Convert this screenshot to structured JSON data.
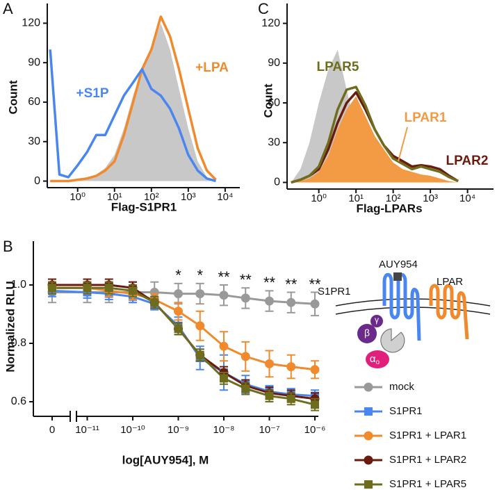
{
  "chart_data": [
    {
      "panel": "A",
      "type": "area",
      "xscale": "log",
      "xlabel": "Flag-S1PR1",
      "ylabel": "Count",
      "x": [
        0.18,
        0.32,
        0.56,
        1,
        1.8,
        3.2,
        5.6,
        10,
        18,
        32,
        56,
        100,
        180,
        320,
        560,
        1000,
        1800,
        3200,
        5600
      ],
      "xlim": [
        0.15,
        25000
      ],
      "xticks": [
        {
          "value": 1,
          "label": "10⁰"
        },
        {
          "value": 10,
          "label": "10¹"
        },
        {
          "value": 100,
          "label": "10²"
        },
        {
          "value": 1000,
          "label": "10³"
        },
        {
          "value": 10000,
          "label": "10⁴"
        }
      ],
      "ylim": [
        -5,
        135
      ],
      "yticks": [
        0,
        30,
        60,
        90,
        120
      ],
      "series": [
        {
          "color": "#c8c8c8",
          "filled": true,
          "values": [
            0,
            0,
            0,
            1,
            3,
            5,
            10,
            20,
            40,
            65,
            85,
            100,
            120,
            100,
            70,
            40,
            15,
            3,
            0
          ]
        },
        {
          "name": "+LPA",
          "color": "#f08a2c",
          "filled": false,
          "values": [
            0,
            0,
            0,
            1,
            2,
            4,
            8,
            15,
            35,
            60,
            85,
            100,
            125,
            110,
            85,
            55,
            25,
            8,
            1
          ]
        },
        {
          "name": "+S1P",
          "color": "#4a86f0",
          "filled": false,
          "values": [
            100,
            5,
            3,
            12,
            22,
            35,
            35,
            50,
            65,
            75,
            85,
            70,
            65,
            55,
            40,
            20,
            8,
            2,
            0
          ]
        }
      ]
    },
    {
      "panel": "B",
      "type": "line",
      "xscale": "log",
      "x_break": true,
      "xlabel": "log[AUY954], M",
      "ylabel": "Normalized RLU",
      "x": [
        0,
        1e-11,
        3e-11,
        1e-10,
        3e-10,
        1e-09,
        3e-09,
        1e-08,
        3e-08,
        1e-07,
        3e-07,
        1e-06
      ],
      "xlim": [
        0,
        1e-06
      ],
      "xticks": [
        0,
        {
          "value": 1e-11,
          "label": "10⁻¹¹"
        },
        {
          "value": 1e-10,
          "label": "10⁻¹⁰"
        },
        {
          "value": 1e-09,
          "label": "10⁻⁹"
        },
        {
          "value": 1e-08,
          "label": "10⁻⁸"
        },
        {
          "value": 1e-07,
          "label": "10⁻⁷"
        },
        {
          "value": 1e-06,
          "label": "10⁻⁶"
        }
      ],
      "ylim": [
        0.55,
        1.15
      ],
      "yticks": [
        0.6,
        0.8,
        {
          "value": 1,
          "label": "1.0"
        }
      ],
      "series": [
        {
          "name": "mock",
          "color": "#999999",
          "marker": "circle",
          "values": [
            0.975,
            0.975,
            0.975,
            0.975,
            0.975,
            0.97,
            0.97,
            0.965,
            0.955,
            0.945,
            0.94,
            0.935
          ],
          "errors": [
            0.035,
            0.035,
            0.035,
            0.035,
            0.035,
            0.035,
            0.035,
            0.035,
            0.035,
            0.035,
            0.035,
            0.04
          ]
        },
        {
          "name": "S1PR1",
          "color": "#4a86f0",
          "marker": "square",
          "values": [
            0.98,
            0.975,
            0.97,
            0.96,
            0.935,
            0.86,
            0.75,
            0.7,
            0.66,
            0.635,
            0.625,
            0.62
          ],
          "errors": [
            0.02,
            0.02,
            0.02,
            0.02,
            0.02,
            0.03,
            0.04,
            0.06,
            0.03,
            0.02,
            0.02,
            0.02
          ]
        },
        {
          "name": "S1PR1 + LPAR1",
          "color": "#f08a2c",
          "marker": "circle",
          "values": [
            0.99,
            0.99,
            0.98,
            0.97,
            0.95,
            0.91,
            0.86,
            0.79,
            0.755,
            0.73,
            0.72,
            0.71
          ],
          "errors": [
            0.02,
            0.02,
            0.02,
            0.02,
            0.02,
            0.03,
            0.05,
            0.05,
            0.05,
            0.045,
            0.04,
            0.03
          ]
        },
        {
          "name": "S1PR1 + LPAR2",
          "color": "#6b1a0e",
          "marker": "circle",
          "values": [
            1,
            1,
            1,
            0.99,
            0.94,
            0.85,
            0.76,
            0.7,
            0.655,
            0.63,
            0.62,
            0.61
          ],
          "errors": [
            0.02,
            0.02,
            0.02,
            0.02,
            0.02,
            0.02,
            0.02,
            0.02,
            0.02,
            0.02,
            0.02,
            0.02
          ]
        },
        {
          "name": "S1PR1 + LPAR5",
          "color": "#6e6d1e",
          "marker": "square",
          "values": [
            0.99,
            0.99,
            0.99,
            0.98,
            0.94,
            0.85,
            0.76,
            0.68,
            0.645,
            0.62,
            0.61,
            0.59
          ],
          "errors": [
            0.02,
            0.02,
            0.02,
            0.02,
            0.02,
            0.02,
            0.02,
            0.02,
            0.02,
            0.02,
            0.02,
            0.02
          ]
        }
      ],
      "significance": [
        null,
        null,
        null,
        null,
        null,
        "*",
        "*",
        "**",
        "**",
        "**",
        "**",
        "**"
      ]
    },
    {
      "panel": "C",
      "type": "area",
      "xscale": "log",
      "xlabel": "Flag-LPARs",
      "ylabel": "Count",
      "x": [
        0.18,
        0.32,
        0.56,
        1,
        1.8,
        3.2,
        5.6,
        10,
        18,
        32,
        56,
        100,
        180,
        320,
        560,
        1000,
        1800,
        3200,
        5600
      ],
      "xlim": [
        0.14,
        50000
      ],
      "xticks": [
        {
          "value": 1,
          "label": "10⁰"
        },
        {
          "value": 10,
          "label": "10¹"
        },
        {
          "value": 100,
          "label": "10²"
        },
        {
          "value": 1000,
          "label": "10³"
        },
        {
          "value": 10000,
          "label": "10⁴"
        }
      ],
      "ylim": [
        -5,
        135
      ],
      "yticks": [
        0,
        30,
        60,
        90,
        120
      ],
      "series": [
        {
          "color": "#c8c8c8",
          "filled": true,
          "values": [
            0,
            10,
            30,
            60,
            85,
            100,
            70,
            40,
            20,
            10,
            4,
            1,
            0,
            0,
            0,
            0,
            0,
            0,
            0
          ]
        },
        {
          "name": "LPAR1",
          "color": "#f39a45",
          "filled": true,
          "values": [
            0,
            1,
            3,
            8,
            20,
            40,
            55,
            65,
            50,
            35,
            25,
            15,
            10,
            8,
            6,
            5,
            3,
            1,
            0
          ]
        },
        {
          "name": "LPAR2",
          "color": "#6b1a0e",
          "filled": false,
          "values": [
            0,
            2,
            5,
            10,
            25,
            45,
            60,
            68,
            55,
            40,
            28,
            20,
            16,
            12,
            13,
            12,
            10,
            5,
            1
          ]
        },
        {
          "name": "LPAR5",
          "color": "#6e6d1e",
          "filled": false,
          "values": [
            0,
            2,
            5,
            12,
            30,
            55,
            70,
            72,
            58,
            40,
            28,
            18,
            14,
            10,
            12,
            10,
            8,
            4,
            1
          ]
        }
      ]
    }
  ],
  "diagram": {
    "ligand": "AUY954",
    "receptor1": "S1PR1",
    "receptor2": "LPAR",
    "gamma": "γ",
    "beta": "β",
    "alpha": "α",
    "alpha_subscript": "o"
  }
}
